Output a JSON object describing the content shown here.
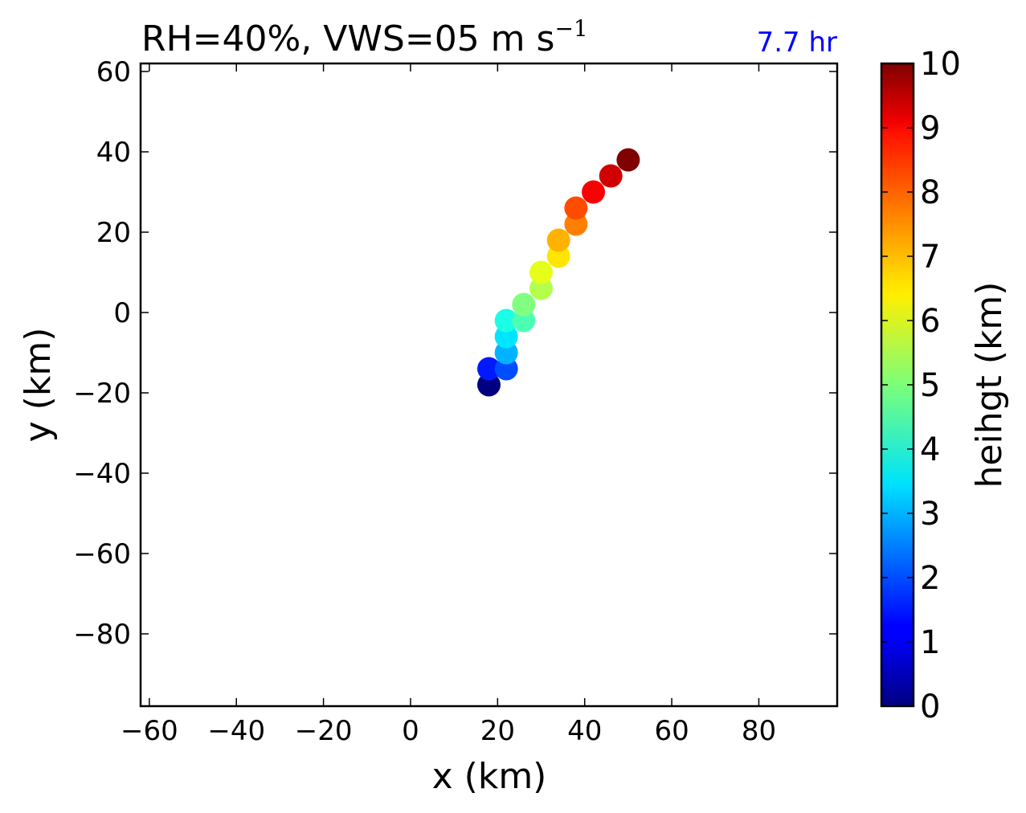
{
  "colors": {
    "time_text": "#0000ff",
    "axis": "#000000",
    "background": "#ffffff"
  },
  "chart_data": {
    "type": "scatter",
    "title": {
      "prefix": "RH=40%, VWS=05 m s",
      "superscript": "−1"
    },
    "annotation": "7.7 hr",
    "xlabel": "x (km)",
    "ylabel": "y (km)",
    "xlim": [
      -62,
      98
    ],
    "ylim": [
      -98,
      62
    ],
    "xticks": [
      -60,
      -40,
      -20,
      0,
      20,
      40,
      60,
      80
    ],
    "yticks": [
      -80,
      -60,
      -40,
      -20,
      0,
      20,
      40,
      60
    ],
    "xtick_labels": [
      "−60",
      "−40",
      "−20",
      "0",
      "20",
      "40",
      "60",
      "80"
    ],
    "ytick_labels": [
      "−80",
      "−60",
      "−40",
      "−20",
      "0",
      "20",
      "40",
      "60"
    ],
    "grid": false,
    "colormap": "jet",
    "colorbar": {
      "label": "heihgt (km)",
      "range": [
        0,
        10
      ],
      "ticks": [
        0,
        1,
        2,
        3,
        4,
        5,
        6,
        7,
        8,
        9,
        10
      ],
      "tick_labels": [
        "0",
        "1",
        "2",
        "3",
        "4",
        "5",
        "6",
        "7",
        "8",
        "9",
        "10"
      ]
    },
    "points": [
      {
        "x": 18,
        "y": -18,
        "height": 0.0
      },
      {
        "x": 18,
        "y": -14,
        "height": 1.5
      },
      {
        "x": 22,
        "y": -14,
        "height": 2.0
      },
      {
        "x": 22,
        "y": -10,
        "height": 3.0
      },
      {
        "x": 22,
        "y": -6,
        "height": 3.5
      },
      {
        "x": 22,
        "y": -2,
        "height": 4.0
      },
      {
        "x": 26,
        "y": -2,
        "height": 4.5
      },
      {
        "x": 26,
        "y": 2,
        "height": 5.0
      },
      {
        "x": 30,
        "y": 6,
        "height": 5.5
      },
      {
        "x": 30,
        "y": 10,
        "height": 6.0
      },
      {
        "x": 34,
        "y": 14,
        "height": 6.5
      },
      {
        "x": 34,
        "y": 18,
        "height": 7.0
      },
      {
        "x": 38,
        "y": 22,
        "height": 7.5
      },
      {
        "x": 38,
        "y": 26,
        "height": 8.0
      },
      {
        "x": 42,
        "y": 30,
        "height": 8.8
      },
      {
        "x": 46,
        "y": 34,
        "height": 9.2
      },
      {
        "x": 50,
        "y": 38,
        "height": 10.0
      }
    ]
  }
}
